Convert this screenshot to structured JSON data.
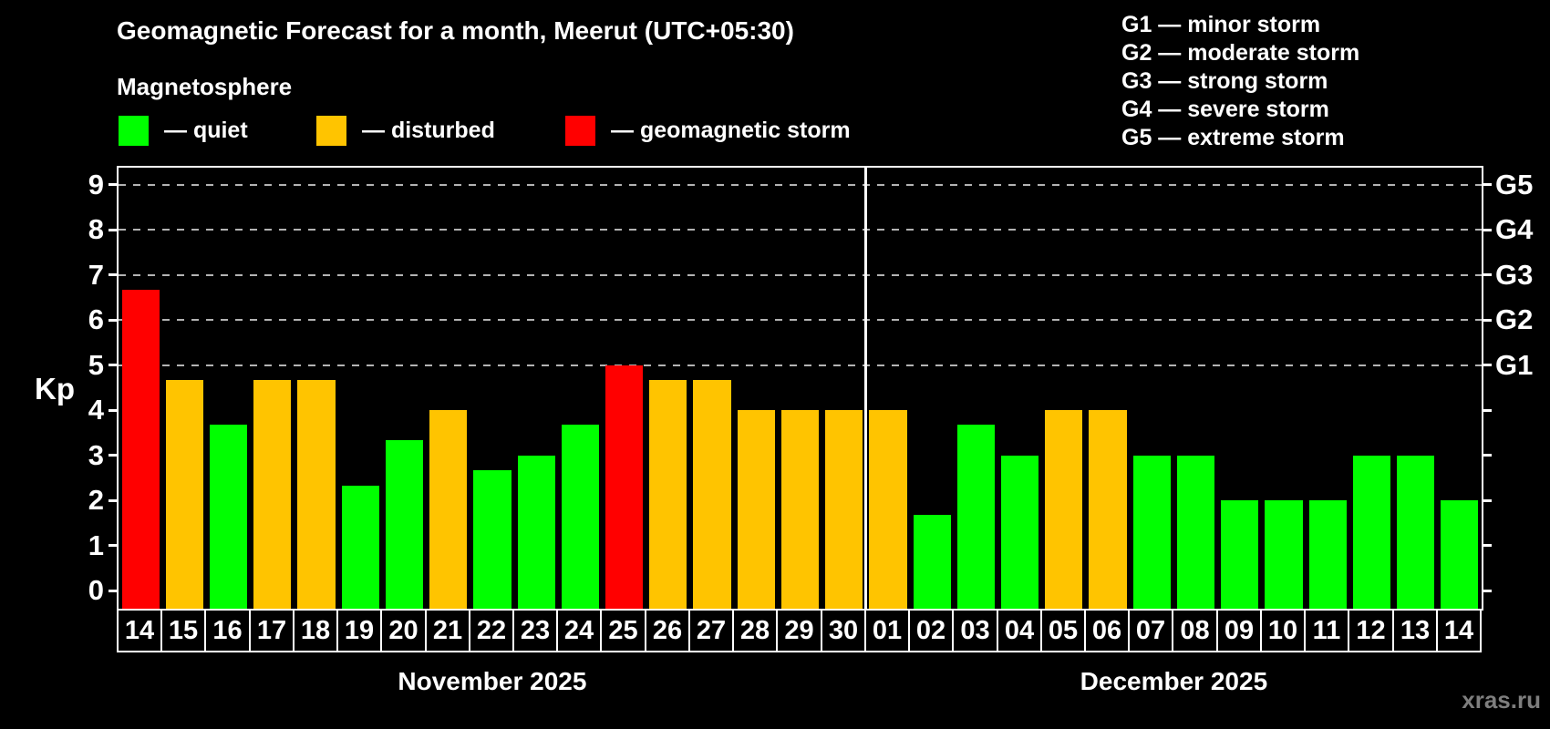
{
  "header": {
    "title": "Geomagnetic Forecast for a month, Meerut (UTC+05:30)",
    "subtitle": "Magnetosphere"
  },
  "legend": {
    "items": [
      {
        "key": "quiet",
        "label": "— quiet",
        "color": "#00ff00"
      },
      {
        "key": "disturbed",
        "label": "— disturbed",
        "color": "#ffc400"
      },
      {
        "key": "storm",
        "label": "— geomagnetic storm",
        "color": "#ff0000"
      }
    ]
  },
  "g_legend": {
    "items": [
      "G1 — minor storm",
      "G2 — moderate storm",
      "G3 — strong storm",
      "G4 — severe storm",
      "G5 — extreme storm"
    ]
  },
  "watermark": "xras.ru",
  "chart_data": {
    "type": "bar",
    "title": "Geomagnetic Forecast for a month, Meerut (UTC+05:30)",
    "ylabel": "Kp",
    "ylim": [
      0,
      9
    ],
    "yticks": [
      0,
      1,
      2,
      3,
      4,
      5,
      6,
      7,
      8,
      9
    ],
    "gridlines_at": [
      5,
      6,
      7,
      8,
      9
    ],
    "grid": "dashed horizontal lines at Kp 5-9 only",
    "right_axis_labels": [
      {
        "kp": 5,
        "label": "G1"
      },
      {
        "kp": 6,
        "label": "G2"
      },
      {
        "kp": 7,
        "label": "G3"
      },
      {
        "kp": 8,
        "label": "G4"
      },
      {
        "kp": 9,
        "label": "G5"
      }
    ],
    "status_colors": {
      "quiet": "#00ff00",
      "disturbed": "#ffc400",
      "storm": "#ff0000"
    },
    "months": [
      {
        "key": "november",
        "label": "November 2025",
        "days": 17
      },
      {
        "key": "december",
        "label": "December 2025",
        "days": 14
      }
    ],
    "points": [
      {
        "month": "nov",
        "day": "14",
        "kp": 6.67,
        "status": "storm"
      },
      {
        "month": "nov",
        "day": "15",
        "kp": 4.67,
        "status": "disturbed"
      },
      {
        "month": "nov",
        "day": "16",
        "kp": 3.67,
        "status": "quiet"
      },
      {
        "month": "nov",
        "day": "17",
        "kp": 4.67,
        "status": "disturbed"
      },
      {
        "month": "nov",
        "day": "18",
        "kp": 4.67,
        "status": "disturbed"
      },
      {
        "month": "nov",
        "day": "19",
        "kp": 2.33,
        "status": "quiet"
      },
      {
        "month": "nov",
        "day": "20",
        "kp": 3.33,
        "status": "quiet"
      },
      {
        "month": "nov",
        "day": "21",
        "kp": 4.0,
        "status": "disturbed"
      },
      {
        "month": "nov",
        "day": "22",
        "kp": 2.67,
        "status": "quiet"
      },
      {
        "month": "nov",
        "day": "23",
        "kp": 3.0,
        "status": "quiet"
      },
      {
        "month": "nov",
        "day": "24",
        "kp": 3.67,
        "status": "quiet"
      },
      {
        "month": "nov",
        "day": "25",
        "kp": 5.0,
        "status": "storm"
      },
      {
        "month": "nov",
        "day": "26",
        "kp": 4.67,
        "status": "disturbed"
      },
      {
        "month": "nov",
        "day": "27",
        "kp": 4.67,
        "status": "disturbed"
      },
      {
        "month": "nov",
        "day": "28",
        "kp": 4.0,
        "status": "disturbed"
      },
      {
        "month": "nov",
        "day": "29",
        "kp": 4.0,
        "status": "disturbed"
      },
      {
        "month": "nov",
        "day": "30",
        "kp": 4.0,
        "status": "disturbed"
      },
      {
        "month": "dec",
        "day": "01",
        "kp": 4.0,
        "status": "disturbed"
      },
      {
        "month": "dec",
        "day": "02",
        "kp": 1.67,
        "status": "quiet"
      },
      {
        "month": "dec",
        "day": "03",
        "kp": 3.67,
        "status": "quiet"
      },
      {
        "month": "dec",
        "day": "04",
        "kp": 3.0,
        "status": "quiet"
      },
      {
        "month": "dec",
        "day": "05",
        "kp": 4.0,
        "status": "disturbed"
      },
      {
        "month": "dec",
        "day": "06",
        "kp": 4.0,
        "status": "disturbed"
      },
      {
        "month": "dec",
        "day": "07",
        "kp": 3.0,
        "status": "quiet"
      },
      {
        "month": "dec",
        "day": "08",
        "kp": 3.0,
        "status": "quiet"
      },
      {
        "month": "dec",
        "day": "09",
        "kp": 2.0,
        "status": "quiet"
      },
      {
        "month": "dec",
        "day": "10",
        "kp": 2.0,
        "status": "quiet"
      },
      {
        "month": "dec",
        "day": "11",
        "kp": 2.0,
        "status": "quiet"
      },
      {
        "month": "dec",
        "day": "12",
        "kp": 3.0,
        "status": "quiet"
      },
      {
        "month": "dec",
        "day": "13",
        "kp": 3.0,
        "status": "quiet"
      },
      {
        "month": "dec",
        "day": "14",
        "kp": 2.0,
        "status": "quiet"
      }
    ]
  }
}
